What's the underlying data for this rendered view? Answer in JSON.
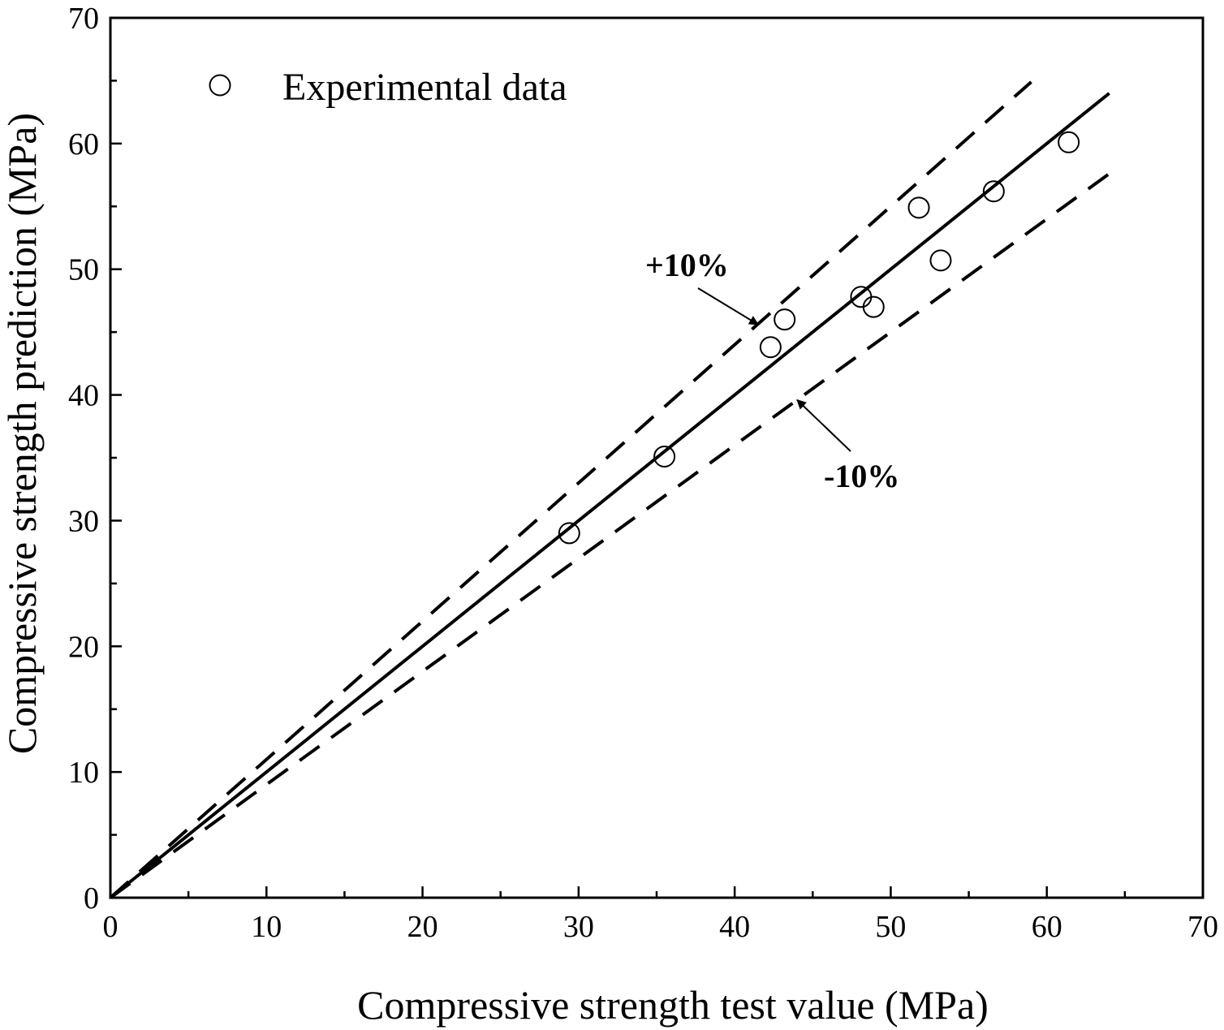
{
  "chart_data": {
    "type": "scatter",
    "xlabel": "Compressive strength test value (MPa)",
    "ylabel": "Compressive strength prediction (MPa)",
    "xlim": [
      0,
      70
    ],
    "ylim": [
      0,
      70
    ],
    "xticks": [
      "0",
      "10",
      "20",
      "30",
      "40",
      "50",
      "60",
      "70"
    ],
    "yticks": [
      "0",
      "10",
      "20",
      "30",
      "40",
      "50",
      "60",
      "70"
    ],
    "grid": false,
    "legend": {
      "placement": "top-left",
      "entries": [
        "Experimental data"
      ]
    },
    "series": [
      {
        "name": "Experimental data",
        "marker": "open-circle",
        "x": [
          29.4,
          35.5,
          42.3,
          43.2,
          48.1,
          48.9,
          51.8,
          53.2,
          56.6,
          61.4
        ],
        "y": [
          29.0,
          35.1,
          43.8,
          46.0,
          47.8,
          47.0,
          54.9,
          50.7,
          56.2,
          60.1
        ]
      }
    ],
    "reference_lines": [
      {
        "style": "solid",
        "slope": 1.0,
        "x_range": [
          0,
          64
        ]
      },
      {
        "style": "dashed",
        "slope": 1.1,
        "x_range": [
          0,
          59
        ]
      },
      {
        "style": "dashed",
        "slope": 0.9,
        "x_range": [
          0,
          64
        ]
      }
    ],
    "annotations": [
      {
        "text": "+10%",
        "arrow_target": [
          41.5,
          45.6
        ]
      },
      {
        "text": "-10%",
        "arrow_target": [
          44.0,
          39.6
        ]
      }
    ],
    "colors": {
      "ink": "#000000",
      "background": "#ffffff"
    }
  }
}
